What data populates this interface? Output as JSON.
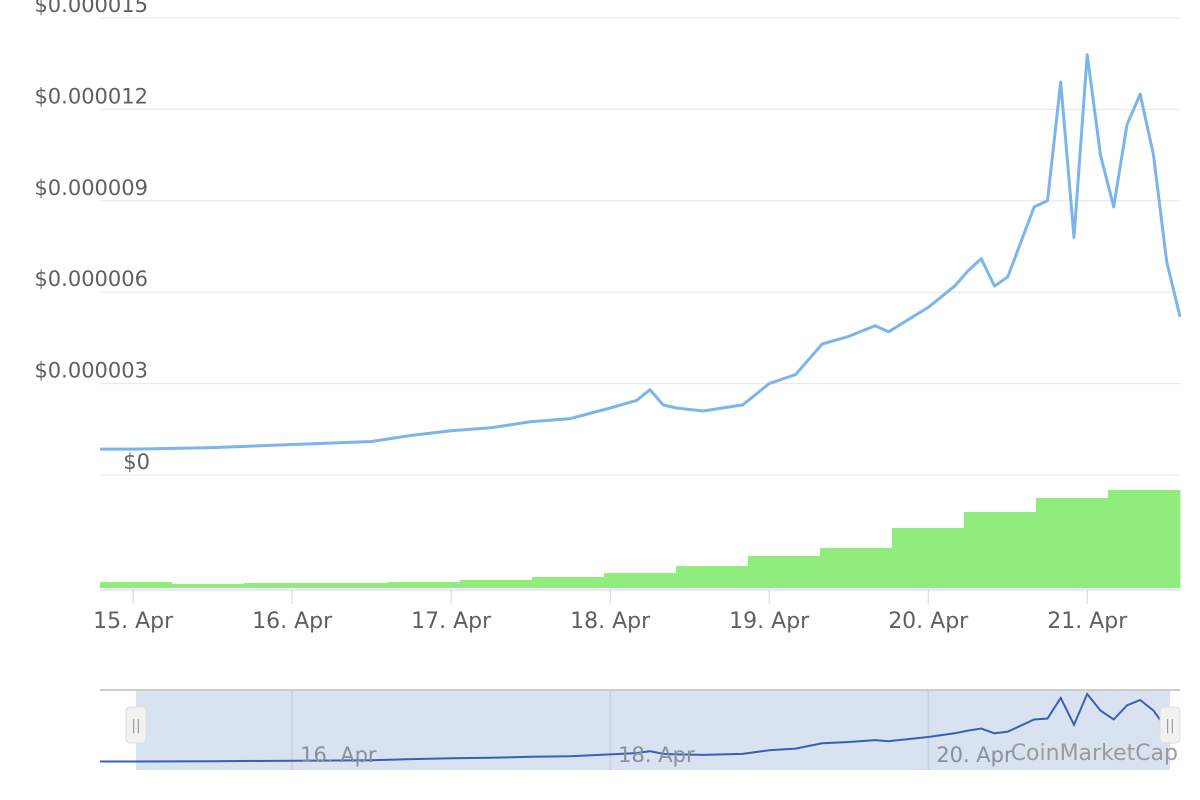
{
  "chart_data": {
    "type": "line",
    "title": "",
    "credit": "CoinMarketCap",
    "ylabel": "",
    "ylim": [
      0,
      1.5e-05
    ],
    "y_ticks": [
      {
        "value": 0,
        "label": "$0"
      },
      {
        "value": 3e-06,
        "label": "$0.000003"
      },
      {
        "value": 6e-06,
        "label": "$0.000006"
      },
      {
        "value": 9e-06,
        "label": "$0.000009"
      },
      {
        "value": 1.2e-05,
        "label": "$0.000012"
      },
      {
        "value": 1.5e-05,
        "label": "$0.000015"
      }
    ],
    "xlim": [
      "2021-04-14T19:00",
      "2021-04-21T14:00"
    ],
    "x_ticks": [
      {
        "value": "2021-04-15T00:00",
        "label": "15. Apr"
      },
      {
        "value": "2021-04-16T00:00",
        "label": "16. Apr"
      },
      {
        "value": "2021-04-17T00:00",
        "label": "17. Apr"
      },
      {
        "value": "2021-04-18T00:00",
        "label": "18. Apr"
      },
      {
        "value": "2021-04-19T00:00",
        "label": "19. Apr"
      },
      {
        "value": "2021-04-20T00:00",
        "label": "20. Apr"
      },
      {
        "value": "2021-04-21T00:00",
        "label": "21. Apr"
      }
    ],
    "navigator_ticks": [
      {
        "value": "2021-04-16T00:00",
        "label": "16. Apr"
      },
      {
        "value": "2021-04-18T00:00",
        "label": "18. Apr"
      },
      {
        "value": "2021-04-20T00:00",
        "label": "20. Apr"
      }
    ],
    "navigator_range": [
      "2021-04-15T00:00",
      "2021-04-21T14:00"
    ],
    "grid": true,
    "legend": "none",
    "series": [
      {
        "color": "#7cb5ec",
        "points": [
          [
            "2021-04-14T19:00",
            8.5e-07
          ],
          [
            "2021-04-15T00:00",
            8.5e-07
          ],
          [
            "2021-04-15T12:00",
            9e-07
          ],
          [
            "2021-04-16T00:00",
            1e-06
          ],
          [
            "2021-04-16T12:00",
            1.1e-06
          ],
          [
            "2021-04-16T18:00",
            1.3e-06
          ],
          [
            "2021-04-17T00:00",
            1.45e-06
          ],
          [
            "2021-04-17T06:00",
            1.55e-06
          ],
          [
            "2021-04-17T12:00",
            1.75e-06
          ],
          [
            "2021-04-17T18:00",
            1.85e-06
          ],
          [
            "2021-04-18T00:00",
            2.2e-06
          ],
          [
            "2021-04-18T04:00",
            2.45e-06
          ],
          [
            "2021-04-18T06:00",
            2.8e-06
          ],
          [
            "2021-04-18T08:00",
            2.3e-06
          ],
          [
            "2021-04-18T10:00",
            2.2e-06
          ],
          [
            "2021-04-18T14:00",
            2.1e-06
          ],
          [
            "2021-04-18T20:00",
            2.3e-06
          ],
          [
            "2021-04-19T00:00",
            3e-06
          ],
          [
            "2021-04-19T04:00",
            3.3e-06
          ],
          [
            "2021-04-19T06:00",
            3.8e-06
          ],
          [
            "2021-04-19T08:00",
            4.3e-06
          ],
          [
            "2021-04-19T12:00",
            4.55e-06
          ],
          [
            "2021-04-19T16:00",
            4.9e-06
          ],
          [
            "2021-04-19T18:00",
            4.7e-06
          ],
          [
            "2021-04-20T00:00",
            5.5e-06
          ],
          [
            "2021-04-20T04:00",
            6.2e-06
          ],
          [
            "2021-04-20T06:00",
            6.7e-06
          ],
          [
            "2021-04-20T08:00",
            7.1e-06
          ],
          [
            "2021-04-20T10:00",
            6.2e-06
          ],
          [
            "2021-04-20T12:00",
            6.5e-06
          ],
          [
            "2021-04-20T16:00",
            8.8e-06
          ],
          [
            "2021-04-20T18:00",
            9e-06
          ],
          [
            "2021-04-20T20:00",
            1.29e-05
          ],
          [
            "2021-04-20T22:00",
            7.8e-06
          ],
          [
            "2021-04-21T00:00",
            1.38e-05
          ],
          [
            "2021-04-21T02:00",
            1.05e-05
          ],
          [
            "2021-04-21T04:00",
            8.8e-06
          ],
          [
            "2021-04-21T06:00",
            1.15e-05
          ],
          [
            "2021-04-21T08:00",
            1.25e-05
          ],
          [
            "2021-04-21T10:00",
            1.05e-05
          ],
          [
            "2021-04-21T12:00",
            7e-06
          ],
          [
            "2021-04-21T14:00",
            5.2e-06
          ]
        ]
      },
      {
        "color": "#90ed7d",
        "values_relative": [
          0.06,
          0.04,
          0.05,
          0.05,
          0.06,
          0.08,
          0.11,
          0.15,
          0.22,
          0.32,
          0.4,
          0.6,
          0.76,
          0.9,
          0.98
        ]
      }
    ]
  }
}
